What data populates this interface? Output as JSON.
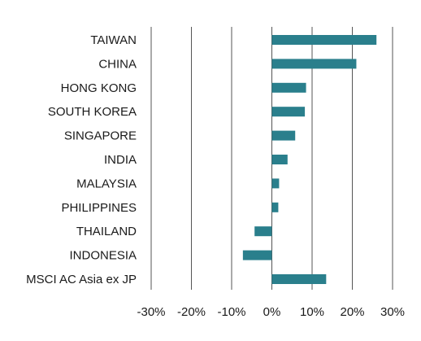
{
  "colors": {
    "bar": "#2a7f8c",
    "grid": "#555555",
    "text": "#1a1a1a"
  },
  "chart_data": {
    "type": "bar",
    "orientation": "horizontal",
    "categories": [
      "TAIWAN",
      "CHINA",
      "HONG KONG",
      "SOUTH KOREA",
      "SINGAPORE",
      "INDIA",
      "MALAYSIA",
      "PHILIPPINES",
      "THAILAND",
      "INDONESIA",
      "MSCI AC Asia ex JP"
    ],
    "values": [
      26,
      21,
      8.5,
      8.2,
      5.8,
      3.9,
      1.8,
      1.6,
      -4.3,
      -7.2,
      13.5
    ],
    "xlim": [
      -30,
      30
    ],
    "xticks": [
      -30,
      -20,
      -10,
      0,
      10,
      20,
      30
    ],
    "xtick_labels": [
      "-30%",
      "-20%",
      "-10%",
      "0%",
      "10%",
      "20%",
      "30%"
    ],
    "grid": true,
    "legend": "none",
    "title": "",
    "xlabel": "",
    "ylabel": ""
  }
}
